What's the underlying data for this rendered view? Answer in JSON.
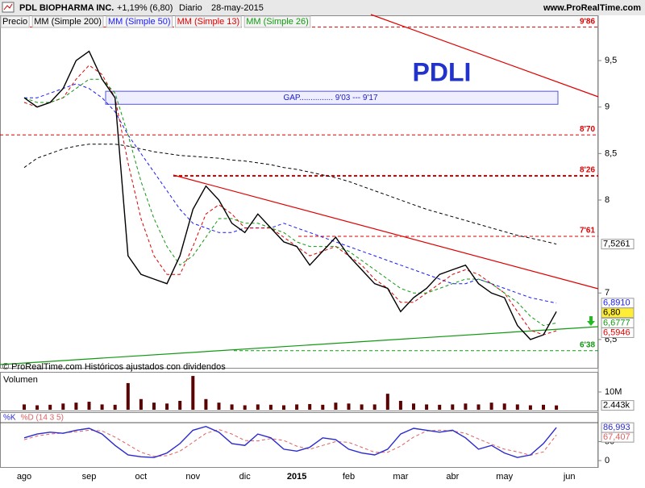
{
  "header": {
    "name": "PDL BIOPHARMA INC.",
    "change": "+1,19% (6,80)",
    "period": "Diario",
    "date": "28-may-2015",
    "site": "www.ProRealTime.com",
    "footer": "© ProRealTime.com  Históricos ajustados con dividendos"
  },
  "chart_data": [
    {
      "type": "line",
      "title": "PDLI",
      "ylim": [
        6.23,
        9.9
      ],
      "yticks": [
        {
          "value": 6.5,
          "label": "6,5"
        },
        7,
        8,
        {
          "value": 8.5,
          "label": "8,5"
        },
        9,
        {
          "value": 9.5,
          "label": "9,5"
        }
      ],
      "grid": false,
      "series": [
        {
          "name": "Precio",
          "color": "#000000",
          "dashed": false,
          "values": [
            9.1,
            9.0,
            9.05,
            9.2,
            9.5,
            9.6,
            9.3,
            9.1,
            7.4,
            7.2,
            7.15,
            7.1,
            7.4,
            7.9,
            8.15,
            8.0,
            7.75,
            7.65,
            7.85,
            7.7,
            7.55,
            7.5,
            7.3,
            7.45,
            7.6,
            7.4,
            7.25,
            7.1,
            7.05,
            6.8,
            6.95,
            7.05,
            7.2,
            7.25,
            7.3,
            7.1,
            7.0,
            6.95,
            6.65,
            6.5,
            6.55,
            6.8,
            null
          ],
          "value_labels": {
            "41": "6,80"
          }
        },
        {
          "name": "MM (Simple 200)",
          "color": "#000000",
          "dashed": true,
          "values": [
            8.35,
            8.45,
            8.5,
            8.55,
            8.58,
            8.6,
            8.6,
            8.6,
            8.58,
            8.55,
            8.52,
            8.5,
            8.48,
            8.47,
            8.46,
            8.45,
            8.43,
            8.42,
            8.4,
            8.38,
            8.35,
            8.33,
            8.3,
            8.27,
            8.24,
            8.2,
            8.15,
            8.1,
            8.05,
            8.0,
            7.95,
            7.9,
            7.86,
            7.82,
            7.78,
            7.74,
            7.7,
            7.66,
            7.62,
            7.59,
            7.56,
            7.5261,
            null
          ],
          "value_labels": {
            "41": "7,5261"
          }
        },
        {
          "name": "MM (Simple 50)",
          "color": "#1a1aff",
          "dashed": true,
          "values": [
            9.1,
            9.1,
            9.15,
            9.2,
            9.25,
            9.2,
            9.1,
            8.95,
            8.7,
            8.5,
            8.3,
            8.1,
            7.9,
            7.75,
            7.7,
            7.65,
            7.65,
            7.7,
            7.7,
            7.7,
            7.75,
            7.7,
            7.65,
            7.6,
            7.55,
            7.5,
            7.45,
            7.4,
            7.35,
            7.3,
            7.25,
            7.2,
            7.15,
            7.1,
            7.1,
            7.15,
            7.1,
            7.05,
            7.0,
            6.95,
            6.92,
            6.891,
            null
          ],
          "value_labels": {
            "41": "6,8910"
          }
        },
        {
          "name": "MM (Simple 13)",
          "color": "#e00000",
          "dashed": true,
          "values": [
            9.05,
            9.0,
            9.05,
            9.1,
            9.3,
            9.45,
            9.35,
            9.1,
            8.4,
            7.8,
            7.4,
            7.2,
            7.2,
            7.5,
            7.85,
            7.95,
            7.85,
            7.7,
            7.7,
            7.7,
            7.6,
            7.5,
            7.4,
            7.45,
            7.5,
            7.4,
            7.3,
            7.15,
            7.05,
            6.9,
            6.9,
            7.0,
            7.1,
            7.2,
            7.25,
            7.2,
            7.1,
            7.0,
            6.8,
            6.6,
            6.55,
            6.5946,
            null
          ],
          "value_labels": {
            "41": "6,5946"
          }
        },
        {
          "name": "MM (Simple 26)",
          "color": "#119911",
          "dashed": true,
          "values": [
            9.1,
            9.05,
            9.05,
            9.1,
            9.2,
            9.3,
            9.3,
            9.15,
            8.7,
            8.2,
            7.8,
            7.5,
            7.3,
            7.4,
            7.6,
            7.8,
            7.8,
            7.75,
            7.75,
            7.7,
            7.65,
            7.55,
            7.5,
            7.5,
            7.5,
            7.45,
            7.35,
            7.25,
            7.15,
            7.05,
            7.0,
            7.0,
            7.05,
            7.1,
            7.15,
            7.15,
            7.1,
            7.0,
            6.9,
            6.75,
            6.65,
            6.6777,
            null
          ],
          "value_labels": {
            "41": "6,6777"
          }
        }
      ],
      "levels": [
        {
          "value": 9.86,
          "label": "9'86",
          "color": "#e00000"
        },
        {
          "value": 8.7,
          "label": "8'70",
          "color": "#e00000"
        },
        {
          "value": 8.26,
          "label": "8'26",
          "color": "#e00000"
        },
        {
          "value": 7.61,
          "label": "7'61",
          "color": "#e00000"
        },
        {
          "value": 6.38,
          "label": "6'38",
          "color": "#119911"
        }
      ],
      "gap": {
        "label": "GAP............... 9'03 --- 9'17",
        "low": 9.03,
        "high": 9.17
      }
    },
    {
      "type": "bar",
      "title": "Volumen",
      "color": "#5a0000",
      "ylim": [
        0,
        19500
      ],
      "yticks": [
        {
          "value": 10000,
          "label": "10M"
        }
      ],
      "values": [
        3000,
        2500,
        2800,
        3500,
        4000,
        4500,
        3000,
        2800,
        15000,
        6000,
        4000,
        3500,
        5000,
        19000,
        6000,
        4000,
        3000,
        2500,
        3000,
        2800,
        2500,
        3000,
        3200,
        2800,
        4000,
        3500,
        3000,
        3000,
        9000,
        5000,
        3500,
        3000,
        2800,
        3000,
        3500,
        3000,
        4000,
        3500,
        3000,
        2500,
        2800,
        2443,
        null
      ],
      "value_labels": {
        "41": "2.443k"
      }
    },
    {
      "type": "line",
      "categories": [
        "ago",
        null,
        null,
        null,
        null,
        "sep",
        null,
        null,
        null,
        "oct",
        null,
        null,
        null,
        "nov",
        null,
        null,
        null,
        "dic",
        null,
        null,
        null,
        "2015",
        null,
        null,
        null,
        "feb",
        null,
        null,
        null,
        "mar",
        null,
        null,
        null,
        "abr",
        null,
        null,
        null,
        "may",
        null,
        null,
        null,
        null,
        "jun"
      ],
      "ylim": [
        0,
        100
      ],
      "yticks": [
        0,
        50
      ],
      "series": [
        {
          "name": "%K",
          "color": "#2a2ad0",
          "dashed": false,
          "values": [
            60,
            70,
            75,
            72,
            80,
            85,
            70,
            40,
            15,
            10,
            8,
            20,
            45,
            80,
            90,
            75,
            45,
            40,
            70,
            60,
            30,
            25,
            35,
            60,
            55,
            30,
            20,
            15,
            30,
            70,
            85,
            80,
            75,
            80,
            60,
            30,
            40,
            20,
            8,
            15,
            45,
            86.993,
            null
          ],
          "value_labels": {
            "41": "86,993"
          }
        },
        {
          "name": "%D (14 3 5)",
          "color": "#e06060",
          "dashed": true,
          "values": [
            55,
            65,
            70,
            73,
            76,
            80,
            78,
            62,
            42,
            22,
            11,
            13,
            25,
            48,
            72,
            82,
            70,
            53,
            52,
            58,
            53,
            38,
            30,
            40,
            50,
            48,
            35,
            22,
            22,
            38,
            62,
            78,
            80,
            78,
            72,
            57,
            43,
            30,
            23,
            14,
            23,
            67.407,
            null
          ],
          "value_labels": {
            "41": "67,407"
          }
        }
      ]
    }
  ]
}
